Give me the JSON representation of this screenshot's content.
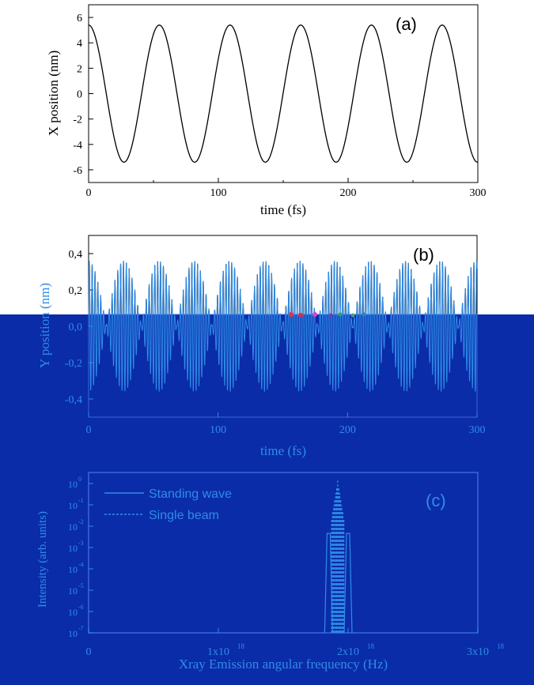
{
  "colors": {
    "background": "#ffffff",
    "ink": "#000000",
    "overlay": "#0a2ca8",
    "overlay_line": "#2f8ce8",
    "overlay_frame": "#3a66d8"
  },
  "chart_data": [
    {
      "type": "line",
      "panel_label": "(a)",
      "xlabel": "time (fs)",
      "ylabel": "X position (nm)",
      "xlim": [
        0,
        300
      ],
      "ylim": [
        -7,
        7
      ],
      "x_ticks": [
        "0",
        "100",
        "200",
        "300"
      ],
      "y_ticks": [
        "-6",
        "-4",
        "-2",
        "0",
        "2",
        "4",
        "6"
      ],
      "series": [
        {
          "amplitude_nm": 5.4,
          "period_fs": 54.5,
          "phase": "cosine",
          "x_range": [
            0,
            300
          ]
        }
      ],
      "grid": false
    },
    {
      "type": "line",
      "panel_label": "(b)",
      "xlabel": "time (fs)",
      "ylabel": "Y position (nm)",
      "xlim": [
        0,
        300
      ],
      "ylim": [
        -0.5,
        0.5
      ],
      "x_ticks": [
        "0",
        "100",
        "200",
        "300"
      ],
      "y_ticks": [
        "0,4",
        "0,2",
        "0,0",
        "-0,2",
        "-0,4"
      ],
      "series": [
        {
          "peak_amplitude_nm": 0.36,
          "envelope_period_fs": 27.2,
          "carrier_period_fs": 2.2,
          "x_range": [
            0,
            300
          ]
        }
      ],
      "grid": false
    },
    {
      "type": "line",
      "panel_label": "(c)",
      "xlabel": "Xray Emission angular frequency (Hz)",
      "ylabel": "Intensity (arb. units)",
      "xlim": [
        0,
        3e+18
      ],
      "y_scale": "log",
      "x_ticks": [
        "0",
        "1x10",
        "2x10",
        "3x10"
      ],
      "x_tick_exponent": "18",
      "y_ticks": [
        "10",
        "10",
        "10",
        "10",
        "10",
        "10",
        "10",
        "10"
      ],
      "y_tick_exponents": [
        "0",
        "-1",
        "-2",
        "-3",
        "-4",
        "-5",
        "-6",
        "-7"
      ],
      "legend": {
        "position": "top-left",
        "entries": [
          {
            "label": "Standing wave",
            "style": "solid"
          },
          {
            "label": "Single beam",
            "style": "dashed"
          }
        ]
      },
      "series": [
        {
          "name": "Standing wave",
          "peaks_hz": [
            1.85e+18,
            2e+18
          ],
          "relative_height": 0.62
        },
        {
          "name": "Single beam",
          "peaks_hz": [
            1.92e+18
          ],
          "relative_height": 0.95
        }
      ],
      "grid": false
    }
  ]
}
